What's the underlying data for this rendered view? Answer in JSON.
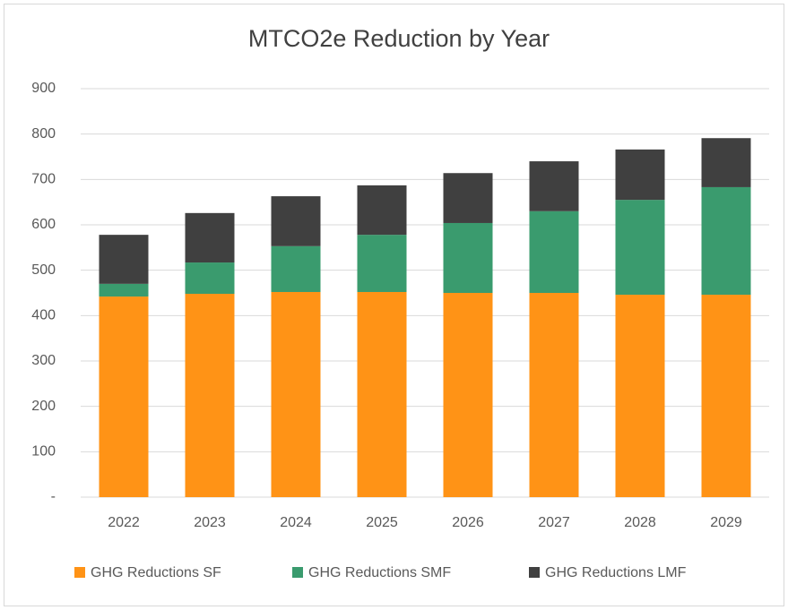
{
  "chart_data": {
    "type": "stacked_bar",
    "title": "MTCO2e Reduction by Year",
    "categories": [
      "2022",
      "2023",
      "2024",
      "2025",
      "2026",
      "2027",
      "2028",
      "2029"
    ],
    "series": [
      {
        "name": "GHG Reductions SF",
        "color": "#ff9316",
        "values": [
          442,
          448,
          452,
          452,
          450,
          450,
          446,
          446
        ]
      },
      {
        "name": "GHG Reductions SMF",
        "color": "#3a9b6e",
        "values": [
          28,
          69,
          101,
          126,
          154,
          180,
          209,
          237
        ]
      },
      {
        "name": "GHG Reductions LMF",
        "color": "#404040",
        "values": [
          108,
          109,
          110,
          109,
          110,
          110,
          111,
          108
        ]
      }
    ],
    "ylim": [
      0,
      900
    ],
    "yticks": [
      {
        "value": 0,
        "label": "-"
      },
      100,
      200,
      300,
      400,
      500,
      600,
      700,
      800,
      900
    ],
    "grid": true,
    "legend": "bottom"
  }
}
